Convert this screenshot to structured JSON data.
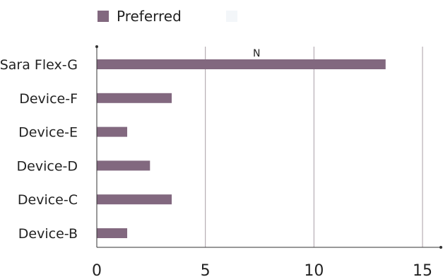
{
  "chart_data": {
    "type": "bar",
    "orientation": "horizontal",
    "categories": [
      "Sara Flex-G",
      "Device-F",
      "Device-E",
      "Device-D",
      "Device-C",
      "Device-B"
    ],
    "series": [
      {
        "name": "Preferred",
        "color": "#82687f",
        "values": [
          13.3,
          3.45,
          1.4,
          2.45,
          3.45,
          1.4
        ]
      },
      {
        "name": "",
        "color": "#f3f6f9",
        "values": [
          0,
          0,
          0,
          0,
          0,
          0
        ]
      }
    ],
    "xlim": [
      0,
      15
    ],
    "xticks": [
      "0",
      "5",
      "10",
      "15"
    ],
    "title": "",
    "xlabel": "",
    "ylabel": "",
    "faint_text": "N",
    "grid": "vertical",
    "legend_position": "top-left"
  },
  "colors": {
    "grid": "#a89ea6",
    "axis": "#333333"
  }
}
